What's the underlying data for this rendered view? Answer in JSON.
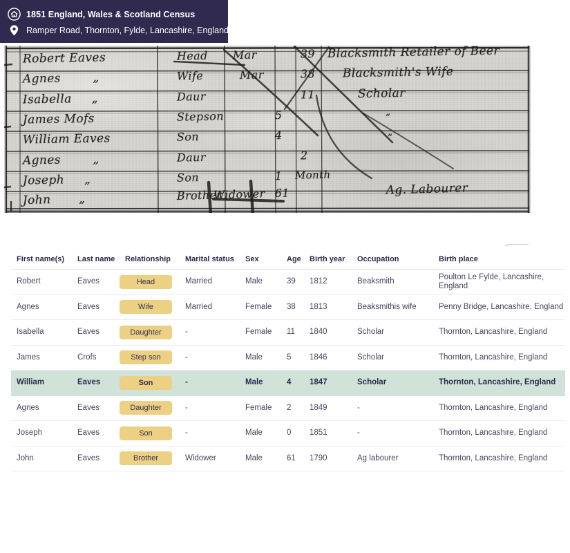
{
  "header": {
    "title": "1851 England, Wales & Scotland Census",
    "location": "Ramper Road, Thornton, Fylde, Lancashire, England"
  },
  "colors": {
    "band_background": "#302b4e",
    "badge_background": "#ecd084",
    "highlight_row_background": "#cfe3d9",
    "header_text": "#2b2b4a",
    "cell_text": "#45455e",
    "scan_paper": "#d7d5d1",
    "ink": "#26241f"
  },
  "scan": {
    "description": "handwritten 1851 census enumeration page",
    "rows": [
      {
        "name": "Robert Eaves",
        "relation": "Head",
        "condition": "Mar",
        "age1": "",
        "age2": "39",
        "occupation": "Blacksmith Retailer of Beer"
      },
      {
        "name": "Agnes        „",
        "relation": "Wife",
        "condition": "Mar",
        "age1": "",
        "age2": "38",
        "occupation": "Blacksmith's Wife"
      },
      {
        "name": "Isabella     „",
        "relation": "Daur",
        "condition": "",
        "age1": "",
        "age2": "11",
        "occupation": "Scholar"
      },
      {
        "name": "James Mofs",
        "relation": "Stepson",
        "condition": "",
        "age1": "5",
        "age2": "",
        "occupation": "„"
      },
      {
        "name": "William Eaves",
        "relation": "Son",
        "condition": "",
        "age1": "4",
        "age2": "",
        "occupation": "„"
      },
      {
        "name": "Agnes        „",
        "relation": "Daur",
        "condition": "",
        "age1": "",
        "age2": "2",
        "occupation": ""
      },
      {
        "name": "Joseph     „",
        "relation": "Son",
        "condition": "",
        "age1": "1",
        "age2": "Month",
        "occupation": ""
      },
      {
        "name": "John       „",
        "relation": "Brother",
        "condition": "Widower",
        "age1": "61",
        "age2": "",
        "occupation": "Ag. Labourer"
      }
    ]
  },
  "table": {
    "columns": [
      {
        "key": "first_name",
        "label": "First name(s)"
      },
      {
        "key": "last_name",
        "label": "Last name"
      },
      {
        "key": "relationship",
        "label": "Relationship"
      },
      {
        "key": "marital_status",
        "label": "Marital status"
      },
      {
        "key": "sex",
        "label": "Sex"
      },
      {
        "key": "age",
        "label": "Age"
      },
      {
        "key": "birth_year",
        "label": "Birth year"
      },
      {
        "key": "occupation",
        "label": "Occupation"
      },
      {
        "key": "birth_place",
        "label": "Birth place"
      }
    ],
    "rows": [
      {
        "first_name": "Robert",
        "last_name": "Eaves",
        "relationship": "Head",
        "marital_status": "Married",
        "sex": "Male",
        "age": "39",
        "birth_year": "1812",
        "occupation": "Beaksmith",
        "birth_place": "Poulton Le Fylde, Lancashire, England",
        "highlighted": false
      },
      {
        "first_name": "Agnes",
        "last_name": "Eaves",
        "relationship": "Wife",
        "marital_status": "Married",
        "sex": "Female",
        "age": "38",
        "birth_year": "1813",
        "occupation": "Beaksmithis wife",
        "birth_place": "Penny Bridge, Lancashire, England",
        "highlighted": false
      },
      {
        "first_name": "Isabella",
        "last_name": "Eaves",
        "relationship": "Daughter",
        "marital_status": "-",
        "sex": "Female",
        "age": "11",
        "birth_year": "1840",
        "occupation": "Scholar",
        "birth_place": "Thornton, Lancashire, England",
        "highlighted": false
      },
      {
        "first_name": "James",
        "last_name": "Crofs",
        "relationship": "Step son",
        "marital_status": "-",
        "sex": "Male",
        "age": "5",
        "birth_year": "1846",
        "occupation": "Scholar",
        "birth_place": "Thornton, Lancashire, England",
        "highlighted": false
      },
      {
        "first_name": "William",
        "last_name": "Eaves",
        "relationship": "Son",
        "marital_status": "-",
        "sex": "Male",
        "age": "4",
        "birth_year": "1847",
        "occupation": "Scholar",
        "birth_place": "Thornton, Lancashire, England",
        "highlighted": true
      },
      {
        "first_name": "Agnes",
        "last_name": "Eaves",
        "relationship": "Daughter",
        "marital_status": "-",
        "sex": "Female",
        "age": "2",
        "birth_year": "1849",
        "occupation": "-",
        "birth_place": "Thornton, Lancashire, England",
        "highlighted": false
      },
      {
        "first_name": "Joseph",
        "last_name": "Eaves",
        "relationship": "Son",
        "marital_status": "-",
        "sex": "Male",
        "age": "0",
        "birth_year": "1851",
        "occupation": "-",
        "birth_place": "Thornton, Lancashire, England",
        "highlighted": false
      },
      {
        "first_name": "John",
        "last_name": "Eaves",
        "relationship": "Brother",
        "marital_status": "Widower",
        "sex": "Male",
        "age": "61",
        "birth_year": "1790",
        "occupation": "Ag labourer",
        "birth_place": "Thornton, Lancashire, England",
        "highlighted": false
      }
    ]
  }
}
